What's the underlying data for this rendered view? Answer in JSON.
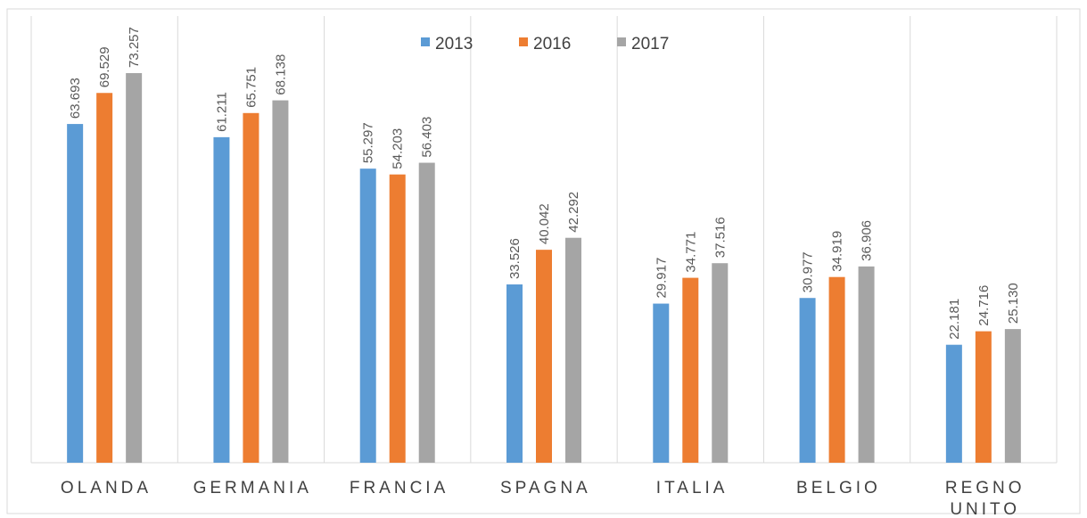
{
  "chart_data": {
    "type": "bar",
    "categories": [
      "OLANDA",
      "GERMANIA",
      "FRANCIA",
      "SPAGNA",
      "ITALIA",
      "BELGIO",
      "REGNO UNITO"
    ],
    "series": [
      {
        "name": "2013",
        "color": "#5b9bd5",
        "values": [
          63.693,
          61.211,
          55.297,
          33.526,
          29.917,
          30.977,
          22.181
        ],
        "value_labels": [
          "63.693",
          "61.211",
          "55.297",
          "33.526",
          "29.917",
          "30.977",
          "22.181"
        ]
      },
      {
        "name": "2016",
        "color": "#ed7d31",
        "values": [
          69.529,
          65.751,
          54.203,
          40.042,
          34.771,
          34.919,
          24.716
        ],
        "value_labels": [
          "69.529",
          "65.751",
          "54.203",
          "40.042",
          "34.771",
          "34.919",
          "24.716"
        ]
      },
      {
        "name": "2017",
        "color": "#a5a5a5",
        "values": [
          73.257,
          68.138,
          56.403,
          42.292,
          37.516,
          36.906,
          25.13
        ],
        "value_labels": [
          "73.257",
          "68.138",
          "56.403",
          "42.292",
          "37.516",
          "36.906",
          "25.130"
        ]
      }
    ],
    "legend": "top"
  }
}
